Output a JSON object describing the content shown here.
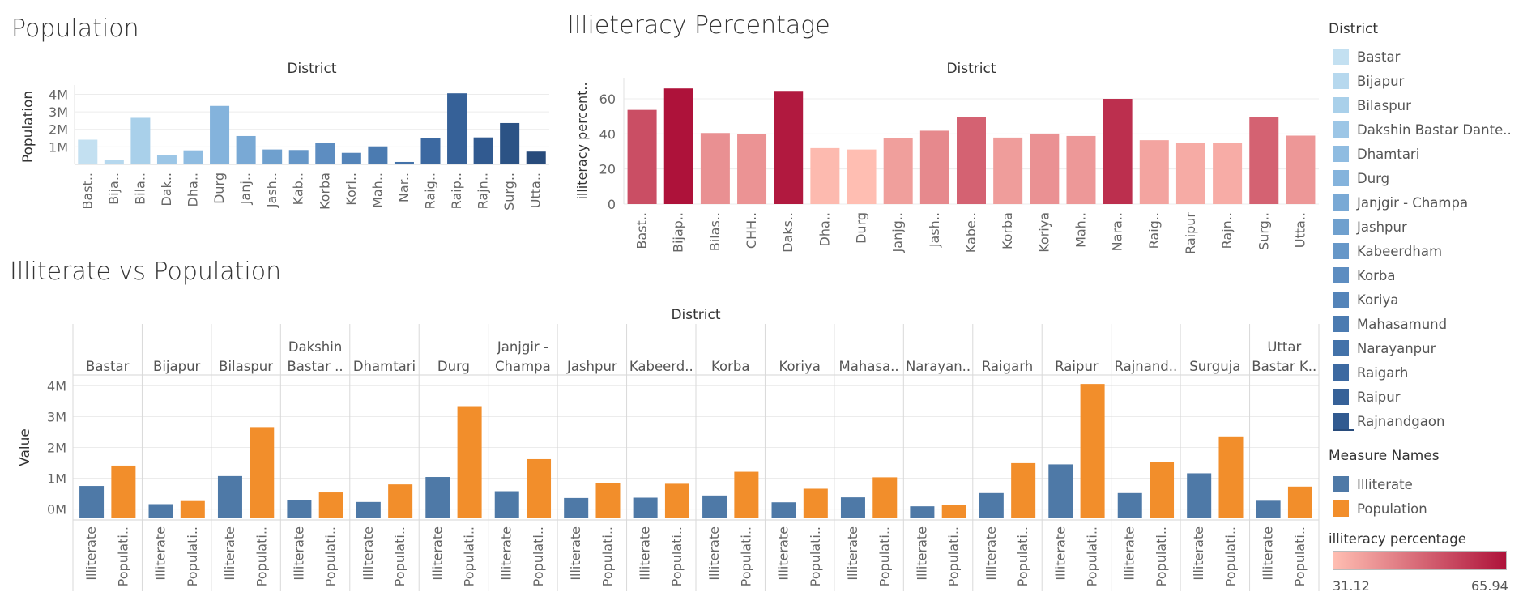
{
  "colors": {
    "blue_scale": [
      "#c3e0f1",
      "#b6d8ee",
      "#a9d0ea",
      "#9cc6e6",
      "#8fbce1",
      "#84b3dc",
      "#79a9d5",
      "#6fa0ce",
      "#6697c8",
      "#5d8dc1",
      "#5484b9",
      "#4b7bb1",
      "#4372a9",
      "#3c69a1",
      "#366198",
      "#315a90",
      "#2c5385",
      "#284b7b"
    ],
    "illiterate": "#4e79a7",
    "population": "#f28e2b",
    "heat_low": "#ffbeb2",
    "heat_high": "#ae123a"
  },
  "chart_data": [
    {
      "id": "population",
      "type": "bar",
      "title": "Population",
      "header": "District",
      "ylabel": "Population",
      "ytick_labels": [
        "4M",
        "3M",
        "2M",
        "1M"
      ],
      "ytick_values": [
        4000000,
        3000000,
        2000000,
        1000000
      ],
      "ylim": [
        0,
        4300000
      ],
      "categories": [
        "Bast..",
        "Bija..",
        "Bila..",
        "Dak..",
        "Dha..",
        "Durg",
        "Janj..",
        "Jash..",
        "Kab..",
        "Korba",
        "Kori..",
        "Mah..",
        "Nar..",
        "Raig..",
        "Raip..",
        "Rajn..",
        "Surg..",
        "Utta.."
      ],
      "values": [
        1410000,
        260000,
        2660000,
        540000,
        800000,
        3340000,
        1620000,
        850000,
        820000,
        1210000,
        660000,
        1030000,
        140000,
        1490000,
        4060000,
        1540000,
        2360000,
        730000
      ]
    },
    {
      "id": "illiteracy",
      "type": "bar",
      "title": "Illieteracy Percentage",
      "header": "District",
      "ylabel": "illiteracy percent..",
      "ytick_labels": [
        "60",
        "40",
        "20",
        "0"
      ],
      "ytick_values": [
        60,
        40,
        20,
        0
      ],
      "ylim": [
        0,
        72
      ],
      "categories": [
        "Bast..",
        "Bijap..",
        "Bilas..",
        "CHH..",
        "Daks..",
        "Dha..",
        "Durg",
        "Janjg..",
        "Jash..",
        "Kabe..",
        "Korba",
        "Koriya",
        "Mah..",
        "Nara..",
        "Raig..",
        "Raipur",
        "Rajn..",
        "Surg..",
        "Utta.."
      ],
      "values": [
        53.7,
        65.9,
        40.5,
        39.9,
        64.5,
        31.9,
        31.1,
        37.4,
        41.8,
        49.8,
        37.9,
        40.2,
        38.8,
        60.0,
        36.4,
        35.0,
        34.7,
        49.7,
        39.0
      ]
    },
    {
      "id": "illiterate_vs_population",
      "type": "bar",
      "title": "Illiterate vs Population",
      "header": "District",
      "ylabel": "Value",
      "ytick_labels": [
        "4M",
        "3M",
        "2M",
        "1M",
        "0M"
      ],
      "ytick_values": [
        4000000,
        3000000,
        2000000,
        1000000,
        0
      ],
      "ylim": [
        -300000,
        4300000
      ],
      "categories": [
        [
          "Bastar"
        ],
        [
          "Bijapur"
        ],
        [
          "Bilaspur"
        ],
        [
          "Dakshin",
          "Bastar .."
        ],
        [
          "Dhamtari"
        ],
        [
          "Durg"
        ],
        [
          "Janjgir -",
          "Champa"
        ],
        [
          "Jashpur"
        ],
        [
          "Kabeerd.."
        ],
        [
          "Korba"
        ],
        [
          "Koriya"
        ],
        [
          "Mahasa.."
        ],
        [
          "Narayan.."
        ],
        [
          "Raigarh"
        ],
        [
          "Raipur"
        ],
        [
          "Rajnand.."
        ],
        [
          "Surguja"
        ],
        [
          "Uttar",
          "Bastar K.."
        ]
      ],
      "measure_labels": [
        "Illiterate",
        "Populati.."
      ],
      "series": [
        {
          "name": "Illiterate",
          "values": [
            750000,
            160000,
            1070000,
            290000,
            230000,
            1040000,
            580000,
            360000,
            370000,
            440000,
            220000,
            380000,
            90000,
            520000,
            1450000,
            520000,
            1160000,
            270000
          ]
        },
        {
          "name": "Population",
          "values": [
            1410000,
            260000,
            2660000,
            540000,
            800000,
            3340000,
            1620000,
            850000,
            820000,
            1210000,
            660000,
            1030000,
            140000,
            1490000,
            4060000,
            1540000,
            2360000,
            730000
          ]
        }
      ]
    }
  ],
  "legend": {
    "district_title": "District",
    "districts": [
      "Bastar",
      "Bijapur",
      "Bilaspur",
      "Dakshin Bastar Dante..",
      "Dhamtari",
      "Durg",
      "Janjgir - Champa",
      "Jashpur",
      "Kabeerdham",
      "Korba",
      "Koriya",
      "Mahasamund",
      "Narayanpur",
      "Raigarh",
      "Raipur",
      "Rajnandgaon"
    ],
    "measure_title": "Measure Names",
    "measures": [
      "Illiterate",
      "Population"
    ],
    "gradient_title": "illiteracy percentage",
    "gradient_min": "31.12",
    "gradient_max": "65.94"
  }
}
